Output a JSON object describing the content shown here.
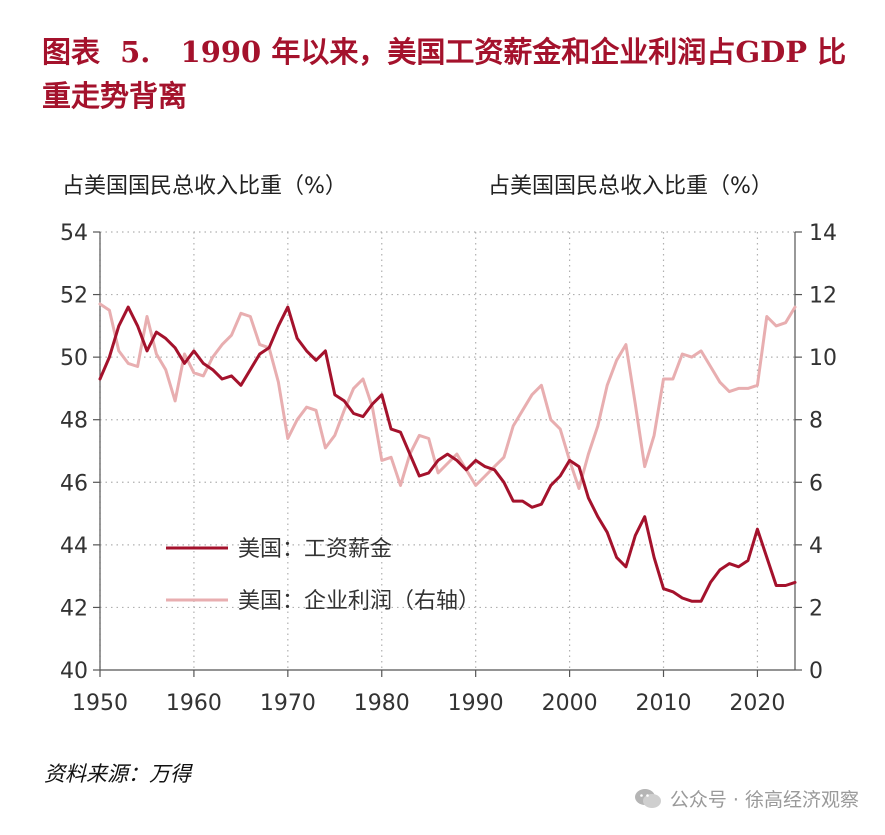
{
  "title_prefix": "图表",
  "figure_number": "5.",
  "title_text": "1990 年以来，美国工资薪金和企业利润占GDP 比重走势背离",
  "left_axis_unit": "占美国国民总收入比重（%）",
  "right_axis_unit": "占美国国民总收入比重（%）",
  "source": "资料来源：万得",
  "watermark": "公众号 · 徐高经济观察",
  "colors": {
    "wages": "#a4122c",
    "profits": "#e8aeb0",
    "title": "#a4122c"
  },
  "chart_data": {
    "type": "line",
    "x_range": [
      1950,
      2024
    ],
    "x_ticks": [
      1950,
      1960,
      1970,
      1980,
      1990,
      2000,
      2010,
      2020
    ],
    "y_left": {
      "range": [
        40,
        54
      ],
      "ticks": [
        40,
        42,
        44,
        46,
        48,
        50,
        52,
        54
      ]
    },
    "y_right": {
      "range": [
        0,
        14
      ],
      "ticks": [
        0,
        2,
        4,
        6,
        8,
        10,
        12,
        14
      ]
    },
    "grid": true,
    "legend_position": "lower-left",
    "series": [
      {
        "name": "美国：工资薪金",
        "axis": "left",
        "x": [
          1950,
          1951,
          1952,
          1953,
          1954,
          1955,
          1956,
          1957,
          1958,
          1959,
          1960,
          1961,
          1962,
          1963,
          1964,
          1965,
          1966,
          1967,
          1968,
          1969,
          1970,
          1971,
          1972,
          1973,
          1974,
          1975,
          1976,
          1977,
          1978,
          1979,
          1980,
          1981,
          1982,
          1983,
          1984,
          1985,
          1986,
          1987,
          1988,
          1989,
          1990,
          1991,
          1992,
          1993,
          1994,
          1995,
          1996,
          1997,
          1998,
          1999,
          2000,
          2001,
          2002,
          2003,
          2004,
          2005,
          2006,
          2007,
          2008,
          2009,
          2010,
          2011,
          2012,
          2013,
          2014,
          2015,
          2016,
          2017,
          2018,
          2019,
          2020,
          2021,
          2022,
          2023,
          2024
        ],
        "values": [
          49.3,
          50.0,
          51.0,
          51.6,
          51.0,
          50.2,
          50.8,
          50.6,
          50.3,
          49.8,
          50.2,
          49.8,
          49.6,
          49.3,
          49.4,
          49.1,
          49.6,
          50.1,
          50.3,
          51.0,
          51.6,
          50.6,
          50.2,
          49.9,
          50.2,
          48.8,
          48.6,
          48.2,
          48.1,
          48.5,
          48.8,
          47.7,
          47.6,
          46.9,
          46.2,
          46.3,
          46.7,
          46.9,
          46.7,
          46.4,
          46.7,
          46.5,
          46.4,
          46.0,
          45.4,
          45.4,
          45.2,
          45.3,
          45.9,
          46.2,
          46.7,
          46.5,
          45.5,
          44.9,
          44.4,
          43.6,
          43.3,
          44.3,
          44.9,
          43.6,
          42.6,
          42.5,
          42.3,
          42.2,
          42.2,
          42.8,
          43.2,
          43.4,
          43.3,
          43.5,
          44.5,
          43.6,
          42.7,
          42.7,
          42.8
        ]
      },
      {
        "name": "美国：企业利润（右轴）",
        "axis": "right",
        "x": [
          1950,
          1951,
          1952,
          1953,
          1954,
          1955,
          1956,
          1957,
          1958,
          1959,
          1960,
          1961,
          1962,
          1963,
          1964,
          1965,
          1966,
          1967,
          1968,
          1969,
          1970,
          1971,
          1972,
          1973,
          1974,
          1975,
          1976,
          1977,
          1978,
          1979,
          1980,
          1981,
          1982,
          1983,
          1984,
          1985,
          1986,
          1987,
          1988,
          1989,
          1990,
          1991,
          1992,
          1993,
          1994,
          1995,
          1996,
          1997,
          1998,
          1999,
          2000,
          2001,
          2002,
          2003,
          2004,
          2005,
          2006,
          2007,
          2008,
          2009,
          2010,
          2011,
          2012,
          2013,
          2014,
          2015,
          2016,
          2017,
          2018,
          2019,
          2020,
          2021,
          2022,
          2023,
          2024
        ],
        "values": [
          11.7,
          11.5,
          10.2,
          9.8,
          9.7,
          11.3,
          10.1,
          9.6,
          8.6,
          10.1,
          9.5,
          9.4,
          10.0,
          10.4,
          10.7,
          11.4,
          11.3,
          10.4,
          10.3,
          9.2,
          7.4,
          8.0,
          8.4,
          8.3,
          7.1,
          7.5,
          8.3,
          9.0,
          9.3,
          8.4,
          6.7,
          6.8,
          5.9,
          6.9,
          7.5,
          7.4,
          6.3,
          6.6,
          6.9,
          6.4,
          5.9,
          6.2,
          6.5,
          6.8,
          7.8,
          8.3,
          8.8,
          9.1,
          8.0,
          7.7,
          6.7,
          5.8,
          6.9,
          7.8,
          9.1,
          9.9,
          10.4,
          8.5,
          6.5,
          7.5,
          9.3,
          9.3,
          10.1,
          10.0,
          10.2,
          9.7,
          9.2,
          8.9,
          9.0,
          9.0,
          9.1,
          11.3,
          11.0,
          11.1,
          11.6
        ]
      }
    ]
  }
}
